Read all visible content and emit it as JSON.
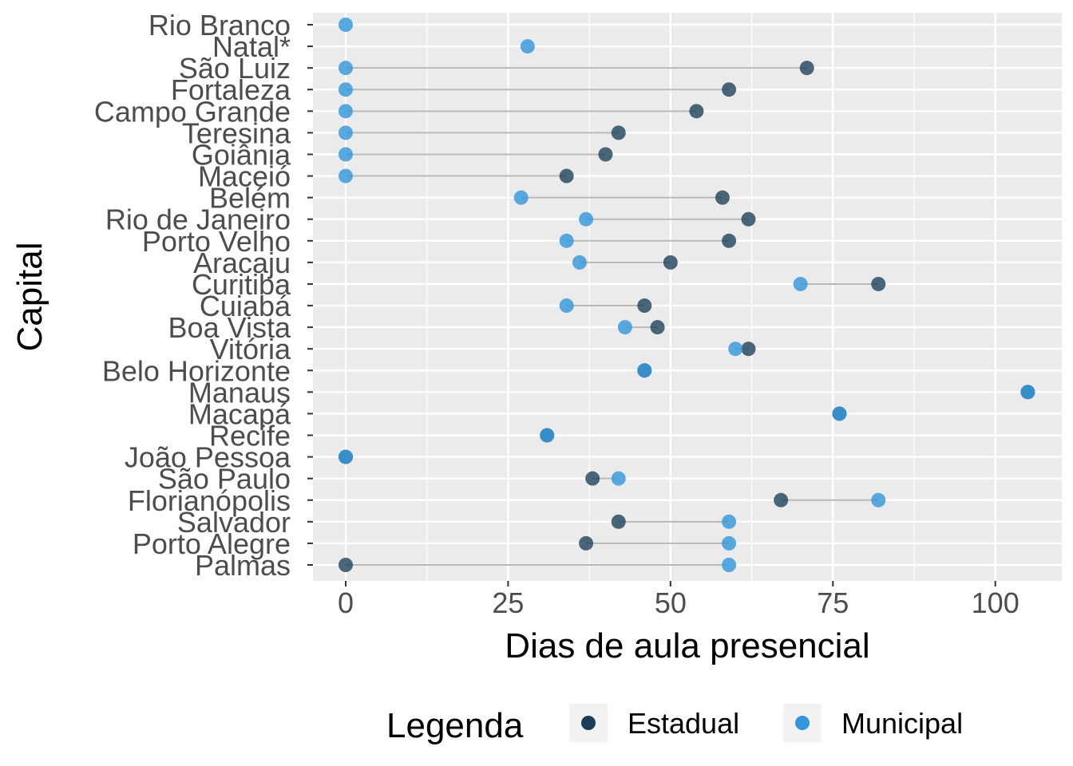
{
  "chart_data": {
    "type": "dot",
    "xlabel": "Dias de aula presencial",
    "ylabel": "Capital",
    "xlim": [
      -11,
      108
    ],
    "xticks": [
      0,
      25,
      50,
      75,
      100
    ],
    "xtick_labels": [
      "0",
      "25",
      "50",
      "75",
      "100"
    ],
    "grid": true,
    "legend": {
      "title": "Legenda",
      "position": "bottom",
      "entries": [
        {
          "label": "Estadual",
          "color": "#1a3e56"
        },
        {
          "label": "Municipal",
          "color": "#3497db"
        }
      ]
    },
    "categories": [
      "Rio Branco",
      "Natal*",
      "São Luiz",
      "Fortaleza",
      "Campo Grande",
      "Teresina",
      "Goiânia",
      "Maceió",
      "Belém",
      "Rio de Janeiro",
      "Porto Velho",
      "Aracaju",
      "Curitiba",
      "Cuiabá",
      "Boa Vista",
      "Vitória",
      "Belo Horizonte",
      "Manaus",
      "Macapá",
      "Recife",
      "João Pessoa",
      "São Paulo",
      "Florianópolis",
      "Salvador",
      "Porto Alegre",
      "Palmas"
    ],
    "series": [
      {
        "name": "Estadual",
        "color": "#1a3e56",
        "values": [
          null,
          null,
          71,
          59,
          54,
          42,
          40,
          34,
          58,
          62,
          59,
          50,
          82,
          46,
          48,
          62,
          46,
          105,
          76,
          31,
          0,
          38,
          67,
          42,
          37,
          0
        ]
      },
      {
        "name": "Municipal",
        "color": "#3497db",
        "values": [
          0,
          28,
          0,
          0,
          0,
          0,
          0,
          0,
          27,
          37,
          34,
          36,
          70,
          34,
          43,
          60,
          46,
          105,
          76,
          31,
          0,
          42,
          82,
          59,
          59,
          59
        ]
      }
    ]
  }
}
